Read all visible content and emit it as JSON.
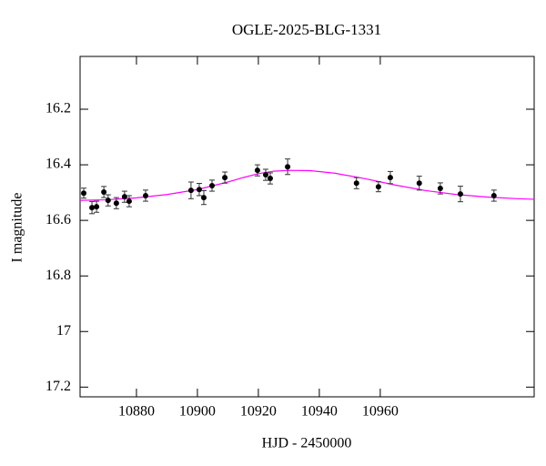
{
  "chart_data": {
    "type": "scatter",
    "title": "OGLE-2025-BLG-1331",
    "xlabel": "HJD - 2450000",
    "ylabel": "I magnitude",
    "xlim": [
      10861.5,
      11010.5
    ],
    "ylim": [
      17.235,
      16.01
    ],
    "xticks": [
      10880,
      10900,
      10920,
      10940,
      10960
    ],
    "yticks": [
      16.2,
      16.4,
      16.6,
      16.8,
      17,
      17.2
    ],
    "color": "#000000",
    "x": [
      10862.7,
      10865.4,
      10866.9,
      10869.3,
      10870.7,
      10873.4,
      10876.1,
      10877.6,
      10883.0,
      10897.9,
      10900.6,
      10902.1,
      10904.8,
      10909.0,
      10919.7,
      10922.4,
      10923.9,
      10929.6,
      10952.2,
      10959.4,
      10963.3,
      10972.8,
      10979.7,
      10986.3,
      10997.3
    ],
    "values": [
      16.502,
      16.554,
      16.551,
      16.498,
      16.528,
      16.538,
      16.515,
      16.531,
      16.511,
      16.492,
      16.489,
      16.518,
      16.475,
      16.446,
      16.42,
      16.436,
      16.449,
      16.407,
      16.466,
      16.479,
      16.446,
      16.466,
      16.485,
      16.505,
      16.511
    ],
    "errors": [
      0.018,
      0.022,
      0.02,
      0.02,
      0.02,
      0.02,
      0.02,
      0.02,
      0.02,
      0.03,
      0.022,
      0.025,
      0.02,
      0.02,
      0.02,
      0.02,
      0.02,
      0.028,
      0.02,
      0.018,
      0.022,
      0.025,
      0.02,
      0.028,
      0.02
    ],
    "model": {
      "color": "#ff00ff",
      "x": [
        10861.5,
        10870,
        10880,
        10890,
        10900,
        10910,
        10915,
        10920,
        10925,
        10930,
        10937,
        10945,
        10955,
        10965,
        10975,
        10985,
        10995,
        11005,
        11010.5
      ],
      "values": [
        16.528,
        16.526,
        16.519,
        16.507,
        16.489,
        16.462,
        16.446,
        16.432,
        16.423,
        16.42,
        16.421,
        16.43,
        16.45,
        16.473,
        16.493,
        16.507,
        16.516,
        16.522,
        16.524
      ]
    }
  }
}
